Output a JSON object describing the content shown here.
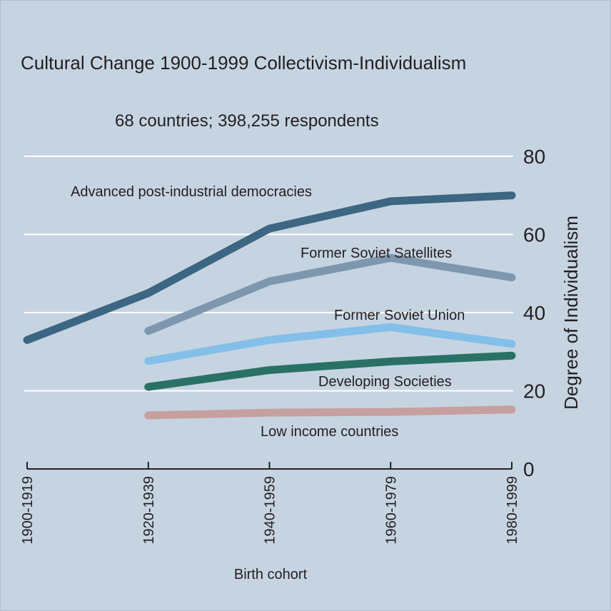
{
  "chart_data": {
    "type": "line",
    "title": "Cultural Change 1900-1999 Collectivism-Individualism",
    "subtitle": "68 countries; 398,255 respondents",
    "xlabel": "Birth cohort",
    "ylabel": "Degree of Individualism",
    "categories": [
      "1900-1919",
      "1920-1939",
      "1940-1959",
      "1960-1979",
      "1980-1999"
    ],
    "ylim": [
      0,
      80
    ],
    "yticks": [
      0,
      20,
      40,
      60,
      80
    ],
    "grid": true,
    "y_axis_side": "right",
    "series": [
      {
        "name": "Advanced post-industrial democracies",
        "color": "#3c6682",
        "values": [
          33,
          45,
          61.5,
          68.5,
          70
        ]
      },
      {
        "name": "Former Soviet Satellites",
        "color": "#7d97ae",
        "values": [
          null,
          35.3,
          48,
          54,
          49
        ]
      },
      {
        "name": "Former Soviet Union",
        "color": "#83bfe9",
        "values": [
          null,
          27.6,
          33,
          36.3,
          32
        ]
      },
      {
        "name": "Developing Societies",
        "color": "#2a7165",
        "values": [
          null,
          21,
          25.3,
          27.5,
          29
        ]
      },
      {
        "name": "Low income countries",
        "color": "#c6a09e",
        "values": [
          null,
          13.7,
          14.4,
          14.6,
          15.2
        ]
      }
    ]
  }
}
